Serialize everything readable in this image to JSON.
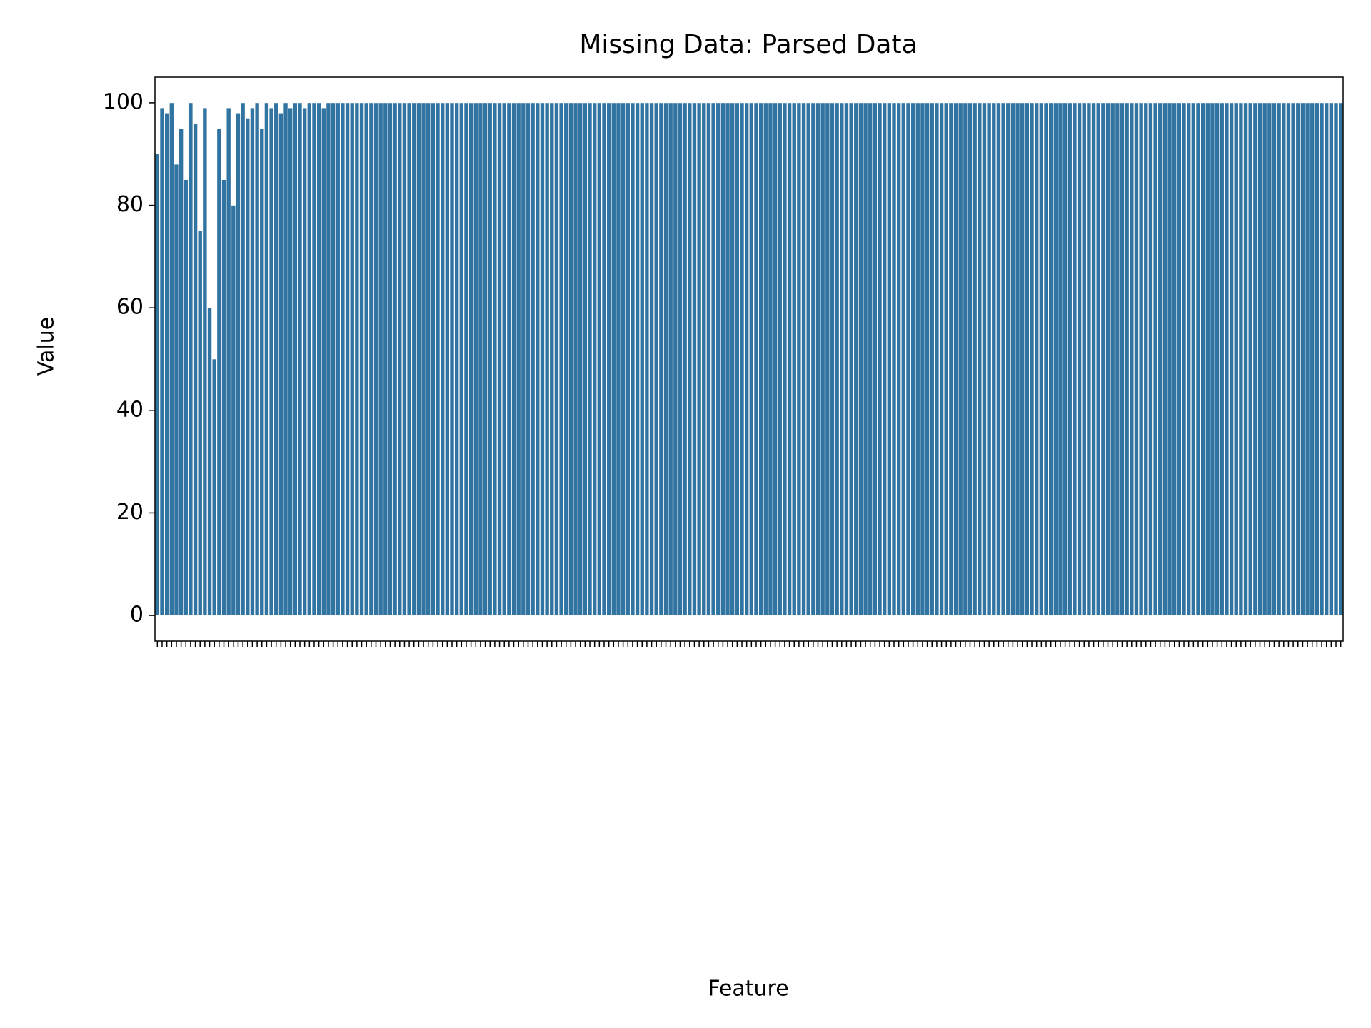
{
  "chart_data": {
    "type": "bar",
    "title": "Missing Data: Parsed Data",
    "x_label": "Feature",
    "y_label": "Value",
    "color": "#3274a1",
    "categories": [
      null,
      null,
      null,
      null,
      null,
      null,
      null,
      null,
      null,
      null,
      null,
      null,
      null,
      null,
      null,
      null,
      null,
      null,
      null,
      null,
      null,
      null,
      null,
      null,
      null,
      null,
      null,
      null,
      null,
      null,
      null,
      null,
      null,
      null,
      null,
      null,
      null,
      null,
      null,
      null,
      null,
      null,
      null,
      null,
      null,
      null,
      null,
      null,
      null,
      null,
      null,
      null,
      null,
      null,
      null,
      null,
      null,
      null,
      null,
      null,
      null,
      null,
      null,
      null,
      null,
      null,
      null,
      null,
      null,
      null,
      null,
      null,
      null,
      null,
      null,
      null,
      null,
      null,
      null,
      null,
      null,
      null,
      null,
      null,
      null,
      null,
      null,
      null,
      null,
      null,
      null,
      null,
      null,
      null,
      null,
      null,
      null,
      null,
      null,
      null,
      null,
      null,
      null,
      null,
      null,
      null,
      null,
      null,
      null,
      null,
      null,
      null,
      null,
      null,
      null,
      null,
      null,
      null,
      null,
      null,
      null,
      null,
      null,
      null,
      null,
      null,
      null,
      null,
      null,
      null,
      null,
      null,
      null,
      null,
      null,
      null,
      null,
      null,
      null,
      null,
      null,
      null,
      null,
      null,
      null,
      null,
      null,
      null,
      null,
      null,
      null,
      null,
      null,
      null,
      null,
      null,
      null,
      null,
      null,
      null,
      null,
      null,
      null,
      null,
      null,
      null,
      null,
      null,
      null,
      null,
      null,
      null,
      null,
      null,
      null,
      null,
      null,
      null,
      null,
      null,
      null,
      null,
      null,
      null,
      null,
      null,
      null,
      null,
      null,
      null,
      null,
      null,
      null,
      null,
      null,
      null,
      null,
      null,
      null,
      null,
      null,
      null,
      null,
      null,
      null,
      null,
      null,
      null,
      null,
      null,
      null,
      null,
      null,
      null,
      null,
      null,
      null,
      null,
      null,
      null,
      null,
      null,
      null,
      null,
      null,
      null,
      null,
      null,
      null,
      null,
      null,
      null,
      null,
      null,
      null,
      null,
      null,
      null,
      null,
      null,
      null,
      null,
      null,
      null,
      null,
      null,
      null,
      null,
      null,
      null
    ],
    "values": [
      90,
      99,
      98,
      100,
      88,
      95,
      85,
      100,
      96,
      75,
      99,
      60,
      50,
      95,
      85,
      99,
      80,
      98,
      100,
      97,
      99,
      100,
      95,
      100,
      99,
      100,
      98,
      100,
      99,
      100,
      100,
      99,
      100,
      100,
      100,
      99,
      100,
      100,
      100,
      100,
      100,
      100,
      100,
      100,
      100,
      100,
      100,
      100,
      100,
      100,
      100,
      100,
      100,
      100,
      100,
      100,
      100,
      100,
      100,
      100,
      100,
      100,
      100,
      100,
      100,
      100,
      100,
      100,
      100,
      100,
      100,
      100,
      100,
      100,
      100,
      100,
      100,
      100,
      100,
      100,
      100,
      100,
      100,
      100,
      100,
      100,
      100,
      100,
      100,
      100,
      100,
      100,
      100,
      100,
      100,
      100,
      100,
      100,
      100,
      100,
      100,
      100,
      100,
      100,
      100,
      100,
      100,
      100,
      100,
      100,
      100,
      100,
      100,
      100,
      100,
      100,
      100,
      100,
      100,
      100,
      100,
      100,
      100,
      100,
      100,
      100,
      100,
      100,
      100,
      100,
      100,
      100,
      100,
      100,
      100,
      100,
      100,
      100,
      100,
      100,
      100,
      100,
      100,
      100,
      100,
      100,
      100,
      100,
      100,
      100,
      100,
      100,
      100,
      100,
      100,
      100,
      100,
      100,
      100,
      100,
      100,
      100,
      100,
      100,
      100,
      100,
      100,
      100,
      100,
      100,
      100,
      100,
      100,
      100,
      100,
      100,
      100,
      100,
      100,
      100,
      100,
      100,
      100,
      100,
      100,
      100,
      100,
      100,
      100,
      100,
      100,
      100,
      100,
      100,
      100,
      100,
      100,
      100,
      100,
      100,
      100,
      100,
      100,
      100,
      100,
      100,
      100,
      100,
      100,
      100,
      100,
      100,
      100,
      100,
      100,
      100,
      100,
      100,
      100,
      100,
      100,
      100,
      100,
      100,
      100,
      100,
      100,
      100,
      100,
      100,
      100,
      100,
      100,
      100,
      100,
      100,
      100,
      100,
      100,
      100,
      100,
      100,
      100,
      100,
      100,
      100,
      100,
      100,
      100,
      100
    ],
    "ylim": [
      -5,
      105
    ],
    "yticks": [
      0,
      20,
      40,
      60,
      80,
      100
    ]
  }
}
